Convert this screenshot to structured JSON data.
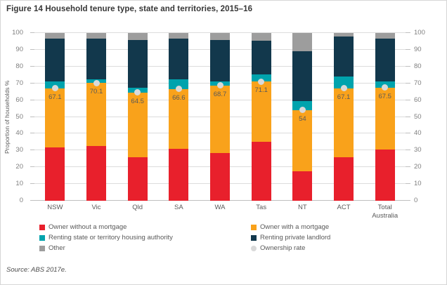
{
  "figure": {
    "title": "Figure 14 Household tenure type, state and territories, 2015–16",
    "source": "Source: ABS 2017e."
  },
  "colors": {
    "owner_without_mortgage": "#e8202c",
    "owner_with_mortgage": "#f9a21b",
    "renting_state_authority": "#00a3ad",
    "renting_private_landlord": "#12384c",
    "other": "#9d9d9d",
    "ownership_rate_dot": "#d9d9d9",
    "gridline": "#dcdcdc",
    "axis_text": "#7f7f7f"
  },
  "chart_data": {
    "type": "bar",
    "stacked": true,
    "title": "Figure 14 Household tenure type, state and territories, 2015–16",
    "xlabel": "",
    "ylabel": "Proportion of households %",
    "ylim": [
      0,
      100
    ],
    "yticks": [
      0,
      10,
      20,
      30,
      40,
      50,
      60,
      70,
      80,
      90,
      100
    ],
    "grid": true,
    "secondary_y_axis": true,
    "legend_position": "bottom",
    "categories": [
      "NSW",
      "Vic",
      "Qld",
      "SA",
      "WA",
      "Tas",
      "NT",
      "ACT",
      "Total Australia"
    ],
    "series": [
      {
        "name": "Owner without a mortgage",
        "color": "#e8202c",
        "values": [
          32.0,
          32.5,
          26.0,
          31.0,
          28.5,
          35.0,
          17.5,
          26.0,
          30.4
        ]
      },
      {
        "name": "Owner with a mortgage",
        "color": "#f9a21b",
        "values": [
          35.1,
          37.6,
          38.5,
          35.6,
          40.2,
          36.1,
          36.5,
          41.1,
          37.1
        ]
      },
      {
        "name": "Renting state or territory housing authority",
        "color": "#00a3ad",
        "values": [
          3.9,
          2.4,
          3.0,
          5.7,
          2.3,
          4.4,
          5.5,
          6.9,
          3.5
        ]
      },
      {
        "name": "Renting private landlord",
        "color": "#12384c",
        "values": [
          25.5,
          24.0,
          28.5,
          24.2,
          25.0,
          20.0,
          29.5,
          24.0,
          25.5
        ]
      },
      {
        "name": "Other",
        "color": "#9d9d9d",
        "values": [
          3.5,
          3.5,
          4.0,
          3.5,
          4.0,
          4.5,
          11.0,
          2.0,
          3.5
        ]
      }
    ],
    "point_series": {
      "name": "Ownership rate",
      "color": "#d9d9d9",
      "values": [
        67.1,
        70.1,
        64.5,
        66.6,
        68.7,
        71.1,
        54,
        67.1,
        67.5
      ]
    },
    "point_labels": [
      "67.1",
      "70.1",
      "64.5",
      "66.6",
      "68.7",
      "71.1",
      "54",
      "67.1",
      "67.5"
    ]
  },
  "legend": {
    "items": [
      {
        "label": "Owner without a mortgage",
        "color": "#e8202c",
        "shape": "square"
      },
      {
        "label": "Owner with a mortgage",
        "color": "#f9a21b",
        "shape": "square"
      },
      {
        "label": "Renting state or territory housing authority",
        "color": "#00a3ad",
        "shape": "square"
      },
      {
        "label": "Renting private landlord",
        "color": "#12384c",
        "shape": "square"
      },
      {
        "label": "Other",
        "color": "#9d9d9d",
        "shape": "square"
      },
      {
        "label": "Ownership rate",
        "color": "#d9d9d9",
        "shape": "circle"
      }
    ]
  }
}
